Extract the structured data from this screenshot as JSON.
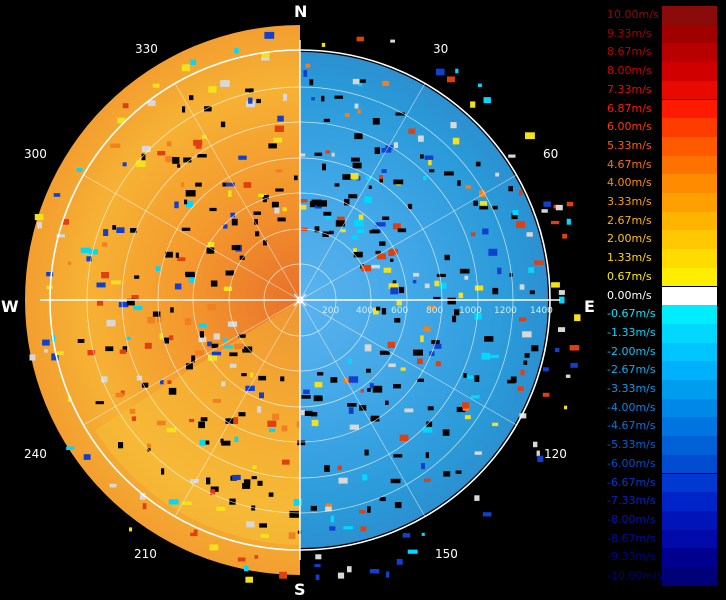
{
  "compass": {
    "north": "N",
    "east": "E",
    "south": "S",
    "west": "W"
  },
  "bearings": [
    "30",
    "60",
    "120",
    "150",
    "210",
    "240",
    "300",
    "330"
  ],
  "range_labels": [
    "200",
    "400",
    "600",
    "800",
    "1000",
    "1200",
    "1400"
  ],
  "legend": {
    "items": [
      {
        "label": "10.00m/s",
        "color": "#8b0a0a"
      },
      {
        "label": "9.33m/s",
        "color": "#a00000"
      },
      {
        "label": "8.67m/s",
        "color": "#b80000"
      },
      {
        "label": "8.00m/s",
        "color": "#d00000"
      },
      {
        "label": "7.33m/s",
        "color": "#e80a00"
      },
      {
        "label": "6.87m/s",
        "color": "#ff1a00"
      },
      {
        "label": "6.00m/s",
        "color": "#ff3c00"
      },
      {
        "label": "5.33m/s",
        "color": "#ff5a00"
      },
      {
        "label": "4.67m/s",
        "color": "#ff7200"
      },
      {
        "label": "4.00m/s",
        "color": "#ff8c00"
      },
      {
        "label": "3.33m/s",
        "color": "#ffa000"
      },
      {
        "label": "2.67m/s",
        "color": "#ffb400"
      },
      {
        "label": "2.00m/s",
        "color": "#ffc800"
      },
      {
        "label": "1.33m/s",
        "color": "#ffdc00"
      },
      {
        "label": "0.67m/s",
        "color": "#ffee00"
      },
      {
        "label": "0.00m/s",
        "color": "#ffffff"
      },
      {
        "label": "-0.67m/s",
        "color": "#00ecff"
      },
      {
        "label": "-1.33m/s",
        "color": "#00d8ff"
      },
      {
        "label": "-2.00m/s",
        "color": "#00c4ff"
      },
      {
        "label": "-2.67m/s",
        "color": "#00b0f8"
      },
      {
        "label": "-3.33m/s",
        "color": "#009cf0"
      },
      {
        "label": "-4.00m/s",
        "color": "#0088e8"
      },
      {
        "label": "-4.67m/s",
        "color": "#0074e0"
      },
      {
        "label": "-5.33m/s",
        "color": "#0060d8"
      },
      {
        "label": "-6.00m/s",
        "color": "#004cd0"
      },
      {
        "label": "-6.67m/s",
        "color": "#0038d0"
      },
      {
        "label": "-7.33m/s",
        "color": "#0024c8"
      },
      {
        "label": "-8.00m/s",
        "color": "#0014b8"
      },
      {
        "label": "-8.67m/s",
        "color": "#000aa8"
      },
      {
        "label": "-9.33m/s",
        "color": "#000090"
      },
      {
        "label": "-10.00m/s",
        "color": "#000078"
      }
    ]
  }
}
